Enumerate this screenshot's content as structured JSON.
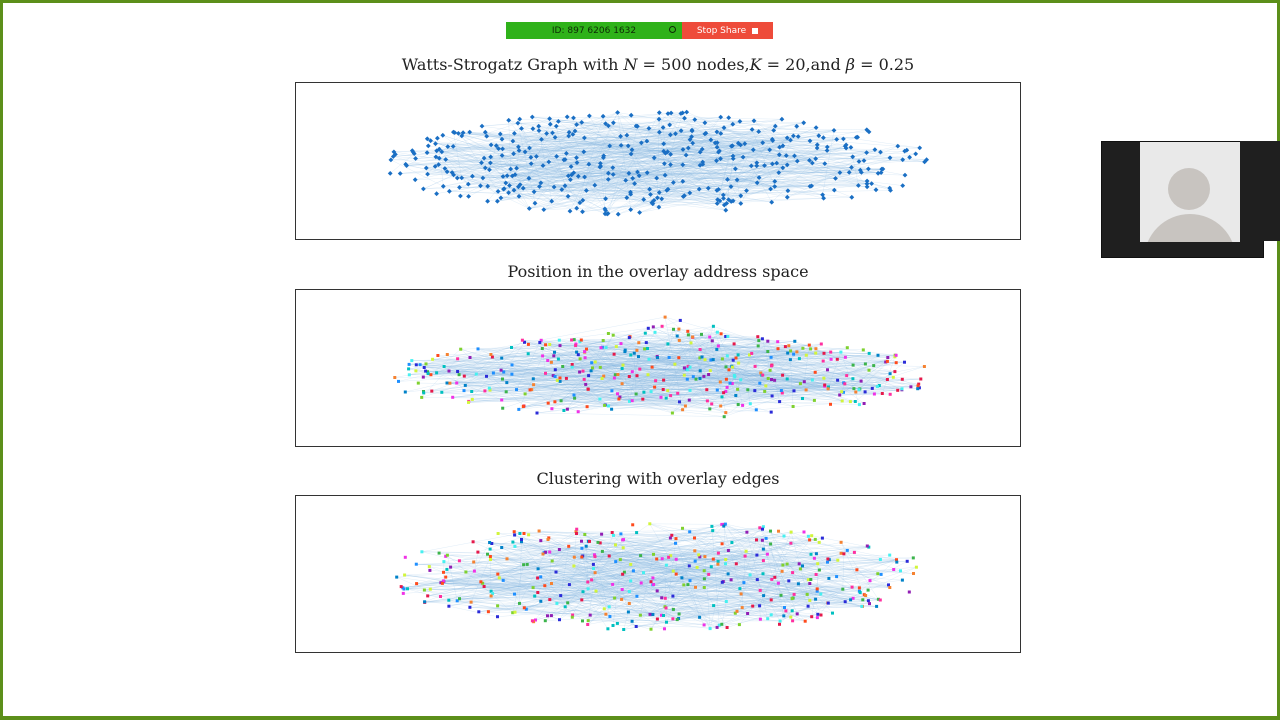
{
  "share_bar": {
    "meeting_id": "ID: 897 6206 1632",
    "stop_label": "Stop Share",
    "id_color": "#2fb21a",
    "stop_color": "#ee4b3a"
  },
  "slide": {
    "panel1": {
      "title_prefix": "Watts-Strogatz Graph with ",
      "title_N": "N",
      "title_mid1": " = 500 nodes,",
      "title_K": "K",
      "title_mid2": " = 20,and ",
      "title_beta": "β",
      "title_suffix": " = 0.25",
      "color_scheme": "single-blue"
    },
    "panel2": {
      "title": "Position in the overlay address space",
      "color_scheme": "rainbow"
    },
    "panel3": {
      "title": "Clustering with overlay edges",
      "color_scheme": "rainbow"
    }
  },
  "video_tile": {
    "icon": "avatar-placeholder-icon"
  },
  "colors": {
    "frame": "#5c8f1a",
    "node_blue": "#1a6fc4",
    "edge_blue": "#7fb2e0"
  }
}
